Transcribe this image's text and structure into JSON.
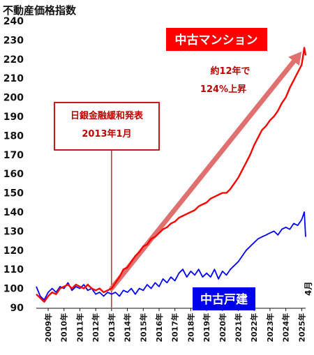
{
  "chart_data": {
    "type": "line",
    "title": "不動産価格指数",
    "ylim": [
      90,
      240
    ],
    "yticks": [
      90,
      100,
      110,
      120,
      130,
      140,
      150,
      160,
      170,
      180,
      190,
      200,
      210,
      220,
      230,
      240
    ],
    "x_start": "2008-04",
    "x_end": "2025-04",
    "x_tick_labels": [
      "2009年",
      "2010年",
      "2011年",
      "2012年",
      "2013年",
      "2014年",
      "2015年",
      "2016年",
      "2017年",
      "2018年",
      "2019年",
      "2020年",
      "2021年",
      "2022年",
      "2023年",
      "2024年",
      "2025年"
    ],
    "end_month_label": "4月",
    "grid": false,
    "series": [
      {
        "name": "中古マンション",
        "color": "#ff0000",
        "points": [
          [
            "2008-04",
            97
          ],
          [
            "2008-07",
            95
          ],
          [
            "2008-10",
            93
          ],
          [
            "2009-01",
            96
          ],
          [
            "2009-04",
            98
          ],
          [
            "2009-07",
            97
          ],
          [
            "2009-10",
            100
          ],
          [
            "2010-01",
            101
          ],
          [
            "2010-04",
            102
          ],
          [
            "2010-07",
            100
          ],
          [
            "2010-10",
            102
          ],
          [
            "2011-01",
            101
          ],
          [
            "2011-04",
            100
          ],
          [
            "2011-07",
            102
          ],
          [
            "2011-10",
            100
          ],
          [
            "2012-01",
            99
          ],
          [
            "2012-04",
            100
          ],
          [
            "2012-07",
            98
          ],
          [
            "2012-10",
            99
          ],
          [
            "2013-01",
            100
          ],
          [
            "2013-04",
            103
          ],
          [
            "2013-07",
            106
          ],
          [
            "2013-10",
            110
          ],
          [
            "2014-01",
            111
          ],
          [
            "2014-04",
            114
          ],
          [
            "2014-07",
            117
          ],
          [
            "2014-10",
            119
          ],
          [
            "2015-01",
            122
          ],
          [
            "2015-04",
            123
          ],
          [
            "2015-07",
            126
          ],
          [
            "2015-10",
            127
          ],
          [
            "2016-01",
            129
          ],
          [
            "2016-04",
            131
          ],
          [
            "2016-07",
            132
          ],
          [
            "2016-10",
            134
          ],
          [
            "2017-01",
            135
          ],
          [
            "2017-04",
            137
          ],
          [
            "2017-07",
            138
          ],
          [
            "2017-10",
            139
          ],
          [
            "2018-01",
            140
          ],
          [
            "2018-04",
            141
          ],
          [
            "2018-07",
            143
          ],
          [
            "2018-10",
            144
          ],
          [
            "2019-01",
            145
          ],
          [
            "2019-04",
            147
          ],
          [
            "2019-07",
            148
          ],
          [
            "2019-10",
            149
          ],
          [
            "2020-01",
            150
          ],
          [
            "2020-04",
            150
          ],
          [
            "2020-07",
            152
          ],
          [
            "2020-10",
            155
          ],
          [
            "2021-01",
            158
          ],
          [
            "2021-04",
            162
          ],
          [
            "2021-07",
            166
          ],
          [
            "2021-10",
            170
          ],
          [
            "2022-01",
            175
          ],
          [
            "2022-04",
            179
          ],
          [
            "2022-07",
            183
          ],
          [
            "2022-10",
            185
          ],
          [
            "2023-01",
            188
          ],
          [
            "2023-04",
            190
          ],
          [
            "2023-07",
            193
          ],
          [
            "2023-10",
            197
          ],
          [
            "2024-01",
            200
          ],
          [
            "2024-04",
            205
          ],
          [
            "2024-07",
            209
          ],
          [
            "2024-10",
            213
          ],
          [
            "2025-01",
            217
          ],
          [
            "2025-03",
            226
          ],
          [
            "2025-04",
            222
          ]
        ]
      },
      {
        "name": "中古戸建",
        "color": "#0000ff",
        "points": [
          [
            "2008-04",
            101
          ],
          [
            "2008-07",
            96
          ],
          [
            "2008-10",
            94
          ],
          [
            "2009-01",
            98
          ],
          [
            "2009-04",
            100
          ],
          [
            "2009-07",
            98
          ],
          [
            "2009-10",
            101
          ],
          [
            "2010-01",
            100
          ],
          [
            "2010-04",
            103
          ],
          [
            "2010-07",
            99
          ],
          [
            "2010-10",
            101
          ],
          [
            "2011-01",
            100
          ],
          [
            "2011-04",
            102
          ],
          [
            "2011-07",
            99
          ],
          [
            "2011-10",
            100
          ],
          [
            "2012-01",
            97
          ],
          [
            "2012-04",
            98
          ],
          [
            "2012-07",
            96
          ],
          [
            "2012-10",
            98
          ],
          [
            "2013-01",
            97
          ],
          [
            "2013-04",
            98
          ],
          [
            "2013-07",
            96
          ],
          [
            "2013-10",
            99
          ],
          [
            "2014-01",
            98
          ],
          [
            "2014-04",
            100
          ],
          [
            "2014-07",
            97
          ],
          [
            "2014-10",
            100
          ],
          [
            "2015-01",
            99
          ],
          [
            "2015-04",
            102
          ],
          [
            "2015-07",
            100
          ],
          [
            "2015-10",
            103
          ],
          [
            "2016-01",
            101
          ],
          [
            "2016-04",
            105
          ],
          [
            "2016-07",
            103
          ],
          [
            "2016-10",
            106
          ],
          [
            "2017-01",
            104
          ],
          [
            "2017-04",
            108
          ],
          [
            "2017-07",
            110
          ],
          [
            "2017-10",
            106
          ],
          [
            "2018-01",
            109
          ],
          [
            "2018-04",
            107
          ],
          [
            "2018-07",
            110
          ],
          [
            "2018-10",
            106
          ],
          [
            "2019-01",
            108
          ],
          [
            "2019-04",
            106
          ],
          [
            "2019-07",
            110
          ],
          [
            "2019-10",
            105
          ],
          [
            "2020-01",
            109
          ],
          [
            "2020-04",
            107
          ],
          [
            "2020-07",
            110
          ],
          [
            "2020-10",
            112
          ],
          [
            "2021-01",
            114
          ],
          [
            "2021-04",
            117
          ],
          [
            "2021-07",
            120
          ],
          [
            "2021-10",
            122
          ],
          [
            "2022-01",
            124
          ],
          [
            "2022-04",
            126
          ],
          [
            "2022-07",
            127
          ],
          [
            "2022-10",
            128
          ],
          [
            "2023-01",
            129
          ],
          [
            "2023-04",
            130
          ],
          [
            "2023-07",
            128
          ],
          [
            "2023-10",
            131
          ],
          [
            "2024-01",
            132
          ],
          [
            "2024-04",
            131
          ],
          [
            "2024-07",
            134
          ],
          [
            "2024-10",
            133
          ],
          [
            "2025-01",
            136
          ],
          [
            "2025-03",
            140
          ],
          [
            "2025-04",
            127
          ]
        ]
      }
    ],
    "annotations": {
      "event_label_line1": "日銀金融緩和発表",
      "event_label_line2": "2013年1月",
      "event_date": "2013-01",
      "growth_line1": "約12年で",
      "growth_line2": "124%上昇",
      "arrow_from": [
        "2013-01",
        100
      ],
      "arrow_to": [
        "2025-01",
        224
      ],
      "arrow_color": "#e07070"
    }
  }
}
